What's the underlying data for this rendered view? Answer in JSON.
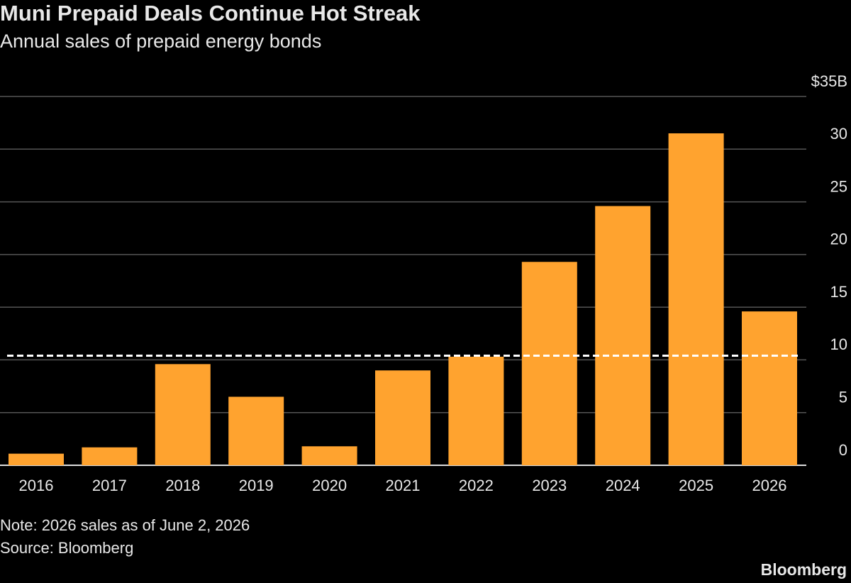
{
  "chart_data": {
    "type": "bar",
    "title": "Muni Prepaid Deals Continue Hot Streak",
    "subtitle": "Annual sales of prepaid energy bonds",
    "categories": [
      "2016",
      "2017",
      "2018",
      "2019",
      "2020",
      "2021",
      "2022",
      "2023",
      "2024",
      "2025",
      "2026"
    ],
    "values": [
      1.1,
      1.7,
      9.6,
      6.5,
      1.8,
      9.0,
      10.3,
      19.3,
      24.6,
      31.5,
      14.6
    ],
    "color": "#ffa32f",
    "reference_line": 10.4,
    "ylim": [
      0,
      35
    ],
    "yticks": [
      0,
      5,
      10,
      15,
      20,
      25,
      30,
      {
        "value": 35,
        "label": "$35B"
      }
    ],
    "grid": true,
    "note": "Note: 2026 sales as of June 2, 2026",
    "source": "Source: Bloomberg",
    "logo": "Bloomberg"
  }
}
